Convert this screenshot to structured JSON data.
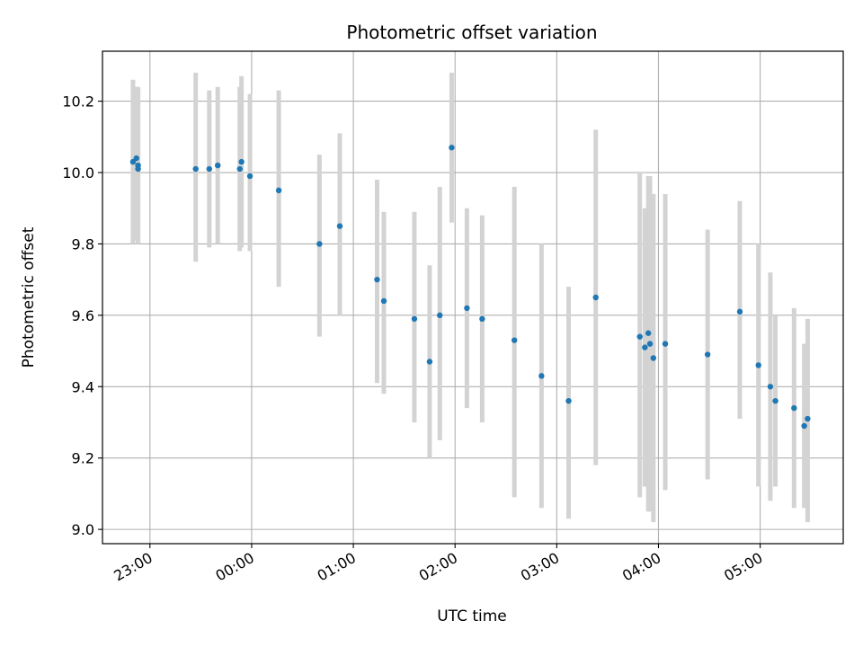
{
  "chart_data": {
    "type": "scatter",
    "title": "Photometric offset variation",
    "xlabel": "UTC time",
    "ylabel": "Photometric offset",
    "grid": true,
    "legend": "none",
    "x_unit": "UTC time (HH:MM)",
    "xlim": [
      "22:32",
      "05:49"
    ],
    "ylim": [
      8.96,
      10.34
    ],
    "x_ticks": [
      "23:00",
      "00:00",
      "01:00",
      "02:00",
      "03:00",
      "04:00",
      "05:00"
    ],
    "y_ticks": [
      "9.0",
      "9.2",
      "9.4",
      "9.6",
      "9.8",
      "10.0",
      "10.2"
    ],
    "colors": {
      "point": "#1f77b4",
      "errorbar": "#d3d3d3",
      "grid": "#b0b0b0"
    },
    "points": [
      {
        "x": "22:50",
        "y": 10.03,
        "ylo": 9.8,
        "yhi": 10.26
      },
      {
        "x": "22:52",
        "y": 10.04,
        "ylo": 9.81,
        "yhi": 10.24
      },
      {
        "x": "22:53",
        "y": 10.02,
        "ylo": 9.8,
        "yhi": 10.24
      },
      {
        "x": "22:53",
        "y": 10.01,
        "ylo": 9.8,
        "yhi": 10.23
      },
      {
        "x": "23:27",
        "y": 10.01,
        "ylo": 9.75,
        "yhi": 10.28
      },
      {
        "x": "23:35",
        "y": 10.01,
        "ylo": 9.79,
        "yhi": 10.23
      },
      {
        "x": "23:40",
        "y": 10.02,
        "ylo": 9.8,
        "yhi": 10.24
      },
      {
        "x": "23:53",
        "y": 10.01,
        "ylo": 9.78,
        "yhi": 10.24
      },
      {
        "x": "23:54",
        "y": 10.03,
        "ylo": 9.79,
        "yhi": 10.27
      },
      {
        "x": "23:59",
        "y": 9.99,
        "ylo": 9.78,
        "yhi": 10.22
      },
      {
        "x": "00:16",
        "y": 9.95,
        "ylo": 9.68,
        "yhi": 10.23
      },
      {
        "x": "00:40",
        "y": 9.8,
        "ylo": 9.54,
        "yhi": 10.05
      },
      {
        "x": "00:52",
        "y": 9.85,
        "ylo": 9.6,
        "yhi": 10.11
      },
      {
        "x": "01:14",
        "y": 9.7,
        "ylo": 9.41,
        "yhi": 9.98
      },
      {
        "x": "01:18",
        "y": 9.64,
        "ylo": 9.38,
        "yhi": 9.89
      },
      {
        "x": "01:36",
        "y": 9.59,
        "ylo": 9.3,
        "yhi": 9.89
      },
      {
        "x": "01:45",
        "y": 9.47,
        "ylo": 9.2,
        "yhi": 9.74
      },
      {
        "x": "01:51",
        "y": 9.6,
        "ylo": 9.25,
        "yhi": 9.96
      },
      {
        "x": "01:58",
        "y": 10.07,
        "ylo": 9.86,
        "yhi": 10.28
      },
      {
        "x": "02:07",
        "y": 9.62,
        "ylo": 9.34,
        "yhi": 9.9
      },
      {
        "x": "02:16",
        "y": 9.59,
        "ylo": 9.3,
        "yhi": 9.88
      },
      {
        "x": "02:35",
        "y": 9.53,
        "ylo": 9.09,
        "yhi": 9.96
      },
      {
        "x": "02:51",
        "y": 9.43,
        "ylo": 9.06,
        "yhi": 9.8
      },
      {
        "x": "03:07",
        "y": 9.36,
        "ylo": 9.03,
        "yhi": 9.68
      },
      {
        "x": "03:23",
        "y": 9.65,
        "ylo": 9.18,
        "yhi": 10.12
      },
      {
        "x": "03:49",
        "y": 9.54,
        "ylo": 9.09,
        "yhi": 10.0
      },
      {
        "x": "03:52",
        "y": 9.51,
        "ylo": 9.12,
        "yhi": 9.9
      },
      {
        "x": "03:54",
        "y": 9.55,
        "ylo": 9.05,
        "yhi": 9.99
      },
      {
        "x": "03:55",
        "y": 9.52,
        "ylo": 9.05,
        "yhi": 9.99
      },
      {
        "x": "03:57",
        "y": 9.48,
        "ylo": 9.02,
        "yhi": 9.94
      },
      {
        "x": "04:04",
        "y": 9.52,
        "ylo": 9.11,
        "yhi": 9.94
      },
      {
        "x": "04:29",
        "y": 9.49,
        "ylo": 9.14,
        "yhi": 9.84
      },
      {
        "x": "04:48",
        "y": 9.61,
        "ylo": 9.31,
        "yhi": 9.92
      },
      {
        "x": "04:59",
        "y": 9.46,
        "ylo": 9.12,
        "yhi": 9.8
      },
      {
        "x": "05:06",
        "y": 9.4,
        "ylo": 9.08,
        "yhi": 9.72
      },
      {
        "x": "05:09",
        "y": 9.36,
        "ylo": 9.12,
        "yhi": 9.6
      },
      {
        "x": "05:20",
        "y": 9.34,
        "ylo": 9.06,
        "yhi": 9.62
      },
      {
        "x": "05:26",
        "y": 9.29,
        "ylo": 9.06,
        "yhi": 9.52
      },
      {
        "x": "05:28",
        "y": 9.31,
        "ylo": 9.02,
        "yhi": 9.59
      }
    ]
  }
}
